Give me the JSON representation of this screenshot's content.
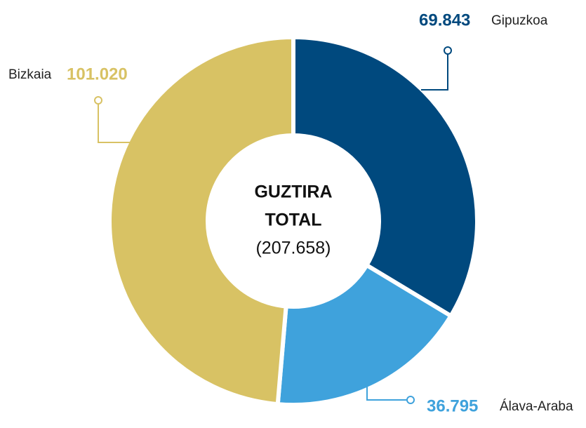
{
  "chart_data": {
    "type": "donut",
    "categories": [
      "Gipuzkoa",
      "Álava-Araba",
      "Bizkaia"
    ],
    "values": [
      69843,
      36795,
      101020
    ],
    "value_labels": [
      "69.843",
      "36.795",
      "101.020"
    ],
    "colors": [
      "#00497e",
      "#3fa2dc",
      "#d8c264"
    ],
    "center_label": [
      "GUZTIRA",
      "TOTAL",
      "(207.658)"
    ]
  }
}
